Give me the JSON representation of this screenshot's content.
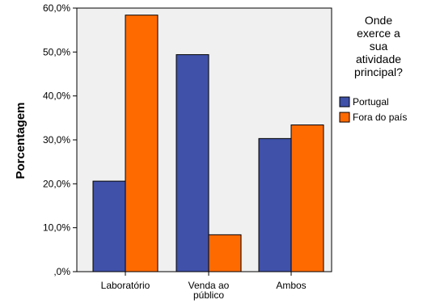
{
  "chart_data": {
    "type": "bar",
    "categories": [
      [
        "Laboratório"
      ],
      [
        "Venda ao",
        "público"
      ],
      [
        "Ambos"
      ]
    ],
    "series": [
      {
        "name": "Portugal",
        "color": "#3f51a9",
        "values": [
          20.6,
          49.4,
          30.3
        ]
      },
      {
        "name": "Fora do país",
        "color": "#ff6a00",
        "values": [
          58.4,
          8.4,
          33.4
        ]
      }
    ],
    "ylabel": "Porcentagem",
    "ylim": [
      0,
      60
    ],
    "yticks": [
      0,
      10,
      20,
      30,
      40,
      50,
      60
    ],
    "ytick_labels": [
      ",0%",
      "10,0%",
      "20,0%",
      "30,0%",
      "40,0%",
      "50,0%",
      "60,0%"
    ],
    "plot_background": "#f0f0f0",
    "grid": false,
    "legend": {
      "position": "right",
      "title_lines": [
        "Onde",
        "exerce a",
        "sua",
        "atividade",
        "principal?"
      ]
    }
  }
}
